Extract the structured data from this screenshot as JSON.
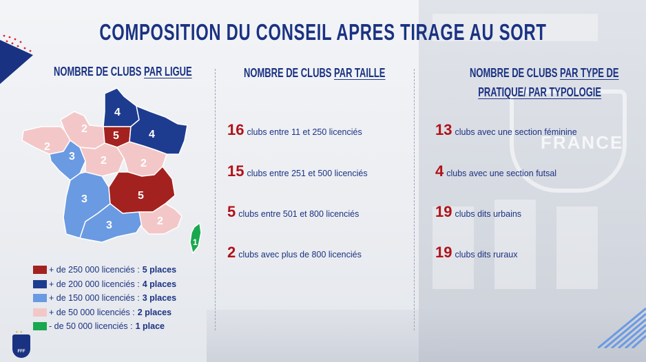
{
  "title": "COMPOSITION DU CONSEIL APRES TIRAGE AU SORT",
  "columns": [
    {
      "prefix": "NOMBRE DE CLUBS ",
      "emph": "PAR LIGUE"
    },
    {
      "prefix": "NOMBRE DE CLUBS ",
      "emph": "PAR TAILLE"
    },
    {
      "prefix": "NOMBRE DE CLUBS ",
      "emph_line1": "PAR TYPE DE",
      "emph_line2": "PRATIQUE/ PAR TYPOLOGIE"
    }
  ],
  "colors": {
    "title": "#1a3282",
    "accent_red": "#b01218",
    "dark_red": "#a3221f",
    "navy": "#1e3c8f",
    "light_blue": "#6a9ae2",
    "pink": "#f3c7c8",
    "green": "#1aa84f"
  },
  "map": {
    "regions": [
      {
        "name": "hauts-de-france",
        "value": "4",
        "color": "navy"
      },
      {
        "name": "normandie",
        "value": "2",
        "color": "pink"
      },
      {
        "name": "ile-de-france",
        "value": "5",
        "color": "dark_red"
      },
      {
        "name": "grand-est",
        "value": "4",
        "color": "navy"
      },
      {
        "name": "bretagne",
        "value": "2",
        "color": "pink"
      },
      {
        "name": "pays-de-la-loire",
        "value": "3",
        "color": "light_blue"
      },
      {
        "name": "centre-val-de-loire",
        "value": "2",
        "color": "pink"
      },
      {
        "name": "bourgogne-franche-comte",
        "value": "2",
        "color": "pink"
      },
      {
        "name": "nouvelle-aquitaine",
        "value": "3",
        "color": "light_blue"
      },
      {
        "name": "auvergne-rhone-alpes",
        "value": "5",
        "color": "dark_red"
      },
      {
        "name": "occitanie",
        "value": "3",
        "color": "light_blue"
      },
      {
        "name": "paca",
        "value": "2",
        "color": "pink"
      },
      {
        "name": "corse",
        "value": "1",
        "color": "green"
      }
    ]
  },
  "legend": [
    {
      "label": "+ de 250 000 licenciés : ",
      "places": "5 places",
      "color": "#a3221f"
    },
    {
      "label": "+ de 200 000 licenciés : ",
      "places": "4 places",
      "color": "#1e3c8f"
    },
    {
      "label": "+ de 150 000 licenciés : ",
      "places": "3 places",
      "color": "#6a9ae2"
    },
    {
      "label": "+ de 50 000 licenciés : ",
      "places": "2 places",
      "color": "#f3c7c8"
    },
    {
      "label": "- de 50 000 licenciés : ",
      "places": "1 place",
      "color": "#1aa84f"
    }
  ],
  "taille": [
    {
      "num": "16",
      "text": "clubs entre 11 et 250 licenciés"
    },
    {
      "num": "15",
      "text": "clubs entre 251 et 500 licenciés"
    },
    {
      "num": "5",
      "text": "clubs entre 501 et 800 licenciés"
    },
    {
      "num": "2",
      "text": "clubs avec plus de 800 licenciés"
    }
  ],
  "typologie": [
    {
      "num": "13",
      "text": "clubs avec une section féminine"
    },
    {
      "num": "4",
      "text": "clubs avec une section futsal"
    },
    {
      "num": "19",
      "text": "clubs dits urbains"
    },
    {
      "num": "19",
      "text": "clubs dits ruraux"
    }
  ],
  "background": {
    "logo_text": "FRANCE",
    "badge_text": "FFF"
  },
  "icons": {
    "corner": "tricolor-corner-icon",
    "badge": "fff-logo-icon",
    "stripes": "diagonal-stripes-icon"
  }
}
